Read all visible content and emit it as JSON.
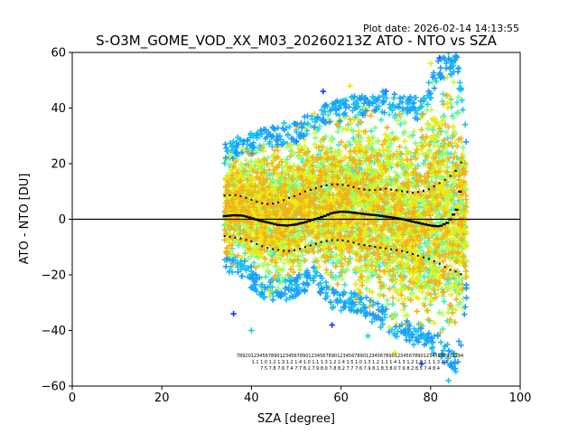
{
  "plot_date": "Plot date: 2026-02-14 14:13:55",
  "chart_data": {
    "type": "scatter",
    "title": "S-O3M_GOME_VOD_XX_M03_20260213Z ATO - NTO vs SZA",
    "xlabel": "SZA [degree]",
    "ylabel": "ATO - NTO [DU]",
    "xlim": [
      0,
      100
    ],
    "ylim": [
      -60,
      60
    ],
    "xticks": [
      0,
      20,
      40,
      60,
      80,
      100
    ],
    "yticks": [
      -60,
      -40,
      -20,
      0,
      20,
      40,
      60
    ],
    "xtick_labels": [
      "0",
      "20",
      "40",
      "60",
      "80",
      "100"
    ],
    "ytick_labels": [
      "−60",
      "−40",
      "−20",
      "0",
      "20",
      "40",
      "60"
    ],
    "zero_line": 0,
    "scatter_colors": [
      "#19c2f2",
      "#3fe6cf",
      "#7fff7a",
      "#bfff3f",
      "#f2e60c",
      "#f2b21a",
      "#0a3fff",
      "#1e9bff",
      "#000080"
    ],
    "envelope": {
      "x": [
        34,
        38,
        42,
        46,
        50,
        54,
        58,
        62,
        66,
        70,
        74,
        78,
        82,
        86,
        88
      ],
      "upper": [
        28,
        30,
        33,
        34,
        36,
        40,
        42,
        44,
        46,
        46,
        44,
        44,
        58,
        60,
        32
      ],
      "lower": [
        -18,
        -22,
        -28,
        -30,
        -28,
        -24,
        -32,
        -34,
        -36,
        -40,
        -44,
        -46,
        -50,
        -56,
        -30
      ]
    },
    "series": [
      {
        "name": "mean",
        "x": [
          34,
          36,
          38,
          40,
          42,
          44,
          46,
          48,
          50,
          52,
          54,
          56,
          58,
          60,
          62,
          64,
          66,
          68,
          70,
          72,
          74,
          76,
          78,
          80,
          82,
          84,
          86,
          87
        ],
        "values": [
          1.2,
          1.5,
          1.4,
          0.5,
          -0.5,
          -1.2,
          -2,
          -2.2,
          -1.8,
          -1,
          0,
          1,
          2.3,
          2.8,
          2.6,
          2.2,
          1.8,
          1.5,
          1,
          0.6,
          0,
          -0.8,
          -1.5,
          -2.2,
          -2.5,
          -1,
          4,
          16
        ]
      },
      {
        "name": "mean + std",
        "x": [
          34,
          36,
          38,
          40,
          42,
          44,
          46,
          48,
          50,
          52,
          54,
          56,
          58,
          60,
          62,
          64,
          66,
          68,
          70,
          72,
          74,
          76,
          78,
          80,
          82,
          84,
          86,
          87
        ],
        "values": [
          8.5,
          8.8,
          8.2,
          7,
          5.8,
          5.4,
          6,
          7.5,
          8.5,
          10,
          11,
          12,
          12.5,
          12.5,
          12,
          11,
          10.5,
          10.5,
          11,
          10.5,
          10,
          9.5,
          10,
          11,
          13,
          15,
          18,
          21
        ]
      },
      {
        "name": "mean − std",
        "x": [
          34,
          36,
          38,
          40,
          42,
          44,
          46,
          48,
          50,
          52,
          54,
          56,
          58,
          60,
          62,
          64,
          66,
          68,
          70,
          72,
          74,
          76,
          78,
          80,
          82,
          84,
          86,
          87
        ],
        "values": [
          -6,
          -6.5,
          -7,
          -8,
          -9.5,
          -10.5,
          -11,
          -11.5,
          -11,
          -10,
          -9,
          -8,
          -7.5,
          -7.5,
          -8,
          -9,
          -9.5,
          -10,
          -10.5,
          -11,
          -11.5,
          -12.5,
          -13.5,
          -14.5,
          -16,
          -18,
          -19,
          -20
        ]
      }
    ],
    "outliers": {
      "x": [
        50,
        52,
        54,
        56,
        60,
        62,
        70,
        74,
        80,
        82,
        84,
        86,
        36,
        40,
        44,
        58,
        66,
        72,
        78,
        84
      ],
      "y": [
        28,
        34,
        38,
        46,
        42,
        48,
        46,
        44,
        56,
        58,
        60,
        58,
        -34,
        -40,
        -26,
        -38,
        -42,
        -48,
        -52,
        -58
      ]
    },
    "stats_rows": [
      "7892012345678901234567890123456789012345678901234567890123456789012345678901234",
      "1.1 1.0 1.2 1.3 1.2 1.4 1.0 1.1 1.3 1.2 1.4 1.5 1.0 1.3 1.2 1.1 1.4 1.3 1.2 1.0 1.1 1.3 1.5",
      "7.5 7.8 7.6 7.4 7.7 8.1 7.9 8.0 7.8 8.2 7.7 7.6 7.9 8.1 8.3 8.0 7.9 8.2 8.5 7.4 8.4"
    ]
  }
}
